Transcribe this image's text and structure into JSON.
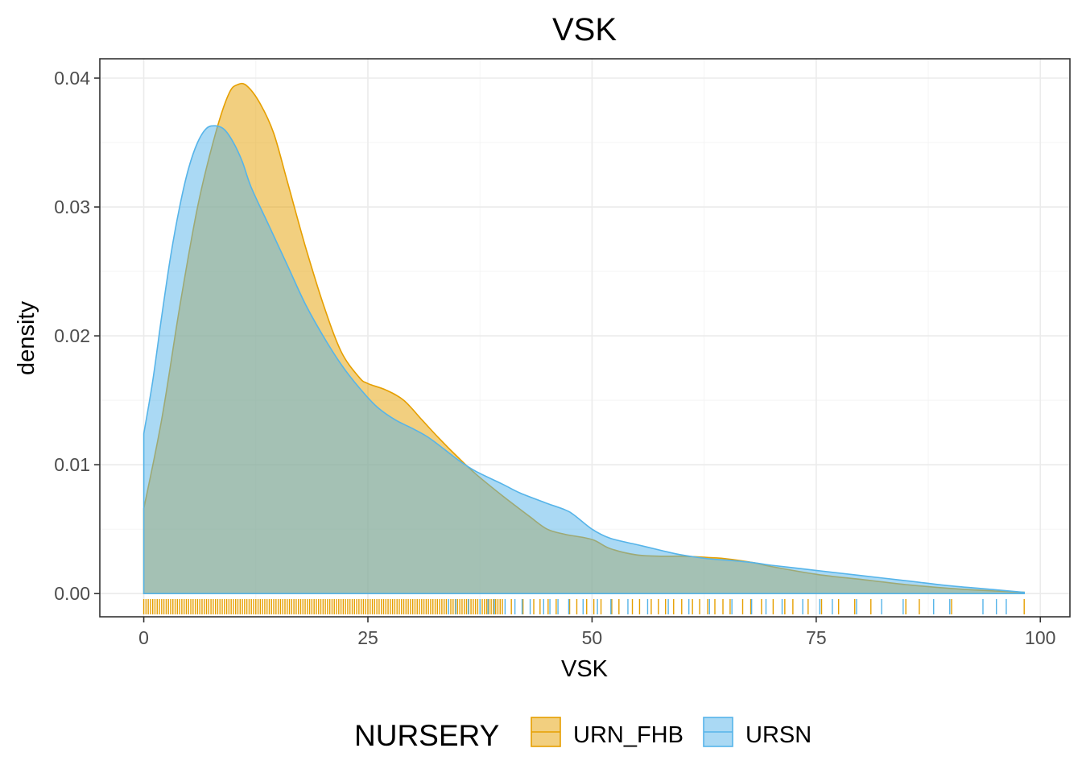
{
  "chart_data": {
    "type": "area",
    "subtype": "density-with-rug",
    "title": "VSK",
    "xlabel": "VSK",
    "ylabel": "density",
    "xlim": [
      -4.9,
      103.3
    ],
    "ylim": [
      -0.0018,
      0.0415
    ],
    "x_ticks": [
      0,
      25,
      50,
      75,
      100
    ],
    "x_tick_labels": [
      "0",
      "25",
      "50",
      "75",
      "100"
    ],
    "y_ticks": [
      0,
      0.01,
      0.02,
      0.03,
      0.04
    ],
    "y_tick_labels": [
      "0.00",
      "0.01",
      "0.02",
      "0.03",
      "0.04"
    ],
    "grid": true,
    "legend": {
      "title": "NURSERY",
      "position": "bottom"
    },
    "series": [
      {
        "name": "URN_FHB",
        "color": "#E69F00",
        "x": [
          0,
          2,
          4,
          6,
          8,
          9.5,
          10.5,
          11.5,
          13,
          14.5,
          16,
          18,
          20,
          22,
          24,
          25,
          27,
          29,
          31,
          33,
          35,
          37,
          40,
          43,
          45,
          47,
          50,
          52,
          55,
          58,
          60,
          63,
          65,
          68,
          70,
          75,
          80,
          85,
          90,
          95,
          98.2
        ],
        "values": [
          0.0066,
          0.0135,
          0.0222,
          0.03,
          0.0357,
          0.0388,
          0.0395,
          0.0394,
          0.038,
          0.0357,
          0.032,
          0.027,
          0.0225,
          0.0188,
          0.0168,
          0.0163,
          0.0158,
          0.015,
          0.0135,
          0.012,
          0.0106,
          0.0093,
          0.0076,
          0.006,
          0.005,
          0.0046,
          0.0042,
          0.0035,
          0.003,
          0.0029,
          0.0029,
          0.0028,
          0.0027,
          0.0024,
          0.0021,
          0.0015,
          0.0011,
          0.0007,
          0.0004,
          0.0002,
          0.0001
        ]
      },
      {
        "name": "URSN",
        "color": "#56B4E9",
        "x": [
          0,
          1,
          2,
          3,
          4,
          5,
          6,
          7,
          8,
          9,
          10,
          11,
          12,
          14,
          16,
          18,
          20,
          22,
          24,
          26,
          28,
          30,
          32,
          35,
          37,
          40,
          42,
          45,
          47,
          48,
          50,
          52,
          55,
          58,
          60,
          63,
          65,
          68,
          70,
          75,
          80,
          85,
          90,
          95,
          98.2
        ],
        "values": [
          0.0124,
          0.0165,
          0.0215,
          0.0262,
          0.03,
          0.033,
          0.035,
          0.0361,
          0.0363,
          0.036,
          0.035,
          0.0335,
          0.0315,
          0.0285,
          0.0255,
          0.0225,
          0.02,
          0.0178,
          0.016,
          0.0145,
          0.0135,
          0.0128,
          0.012,
          0.0104,
          0.0095,
          0.0085,
          0.0078,
          0.007,
          0.0065,
          0.0061,
          0.005,
          0.0043,
          0.0038,
          0.0033,
          0.003,
          0.0027,
          0.0026,
          0.0024,
          0.0022,
          0.0018,
          0.0014,
          0.001,
          0.0006,
          0.0003,
          0.0001
        ]
      }
    ],
    "rug": [
      {
        "name": "URN_FHB",
        "dense_range": [
          0,
          40
        ],
        "dense_step": 0.25,
        "sparse_x": [
          41,
          42.3,
          43.5,
          44.2,
          45.1,
          46,
          47.5,
          48.3,
          49.4,
          50.2,
          51,
          52.2,
          53,
          54.5,
          55.3,
          56.6,
          57.4,
          58.2,
          59.1,
          60,
          61.2,
          62,
          62.9,
          63.7,
          64.6,
          65.4,
          66.8,
          67.7,
          68.9,
          70.2,
          71.5,
          72.4,
          74.1,
          75.6,
          77.5,
          79.3,
          81.1,
          85,
          86.5,
          90.1,
          98.2
        ]
      },
      {
        "name": "URSN",
        "x": [
          34,
          34.8,
          36.2,
          37.5,
          38.4,
          39.1,
          40.3,
          41.4,
          42.2,
          43.1,
          44.6,
          45.3,
          46.2,
          47.4,
          49,
          50.6,
          52.1,
          54,
          56.2,
          58.5,
          60.8,
          63.1,
          65.6,
          67.8,
          69.4,
          71.2,
          73.5,
          75.4,
          76.8,
          79.5,
          82.3,
          84.7,
          88.1,
          89.9,
          93.6,
          95.1,
          96.2
        ]
      }
    ]
  }
}
